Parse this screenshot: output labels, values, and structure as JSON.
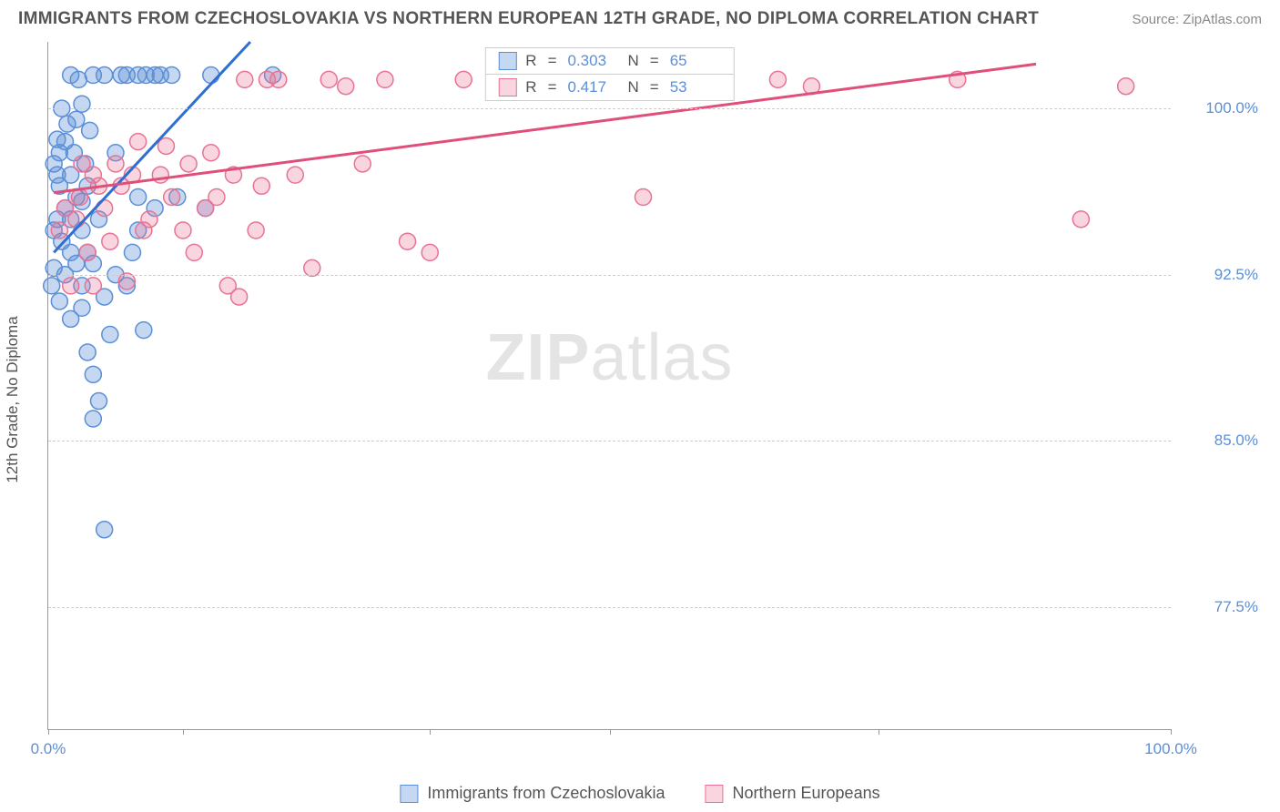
{
  "header": {
    "title": "IMMIGRANTS FROM CZECHOSLOVAKIA VS NORTHERN EUROPEAN 12TH GRADE, NO DIPLOMA CORRELATION CHART",
    "source": "Source: ZipAtlas.com"
  },
  "watermark": {
    "bold": "ZIP",
    "light": "atlas"
  },
  "chart": {
    "type": "scatter",
    "background_color": "#ffffff",
    "grid_color": "#cccccc",
    "axis_color": "#999999",
    "ylabel": "12th Grade, No Diploma",
    "ylabel_fontsize": 17,
    "ylabel_color": "#555555",
    "tick_fontsize": 17,
    "tick_color": "#5b8fd6",
    "xlim": [
      0,
      100
    ],
    "ylim": [
      72,
      103
    ],
    "xtick_positions": [
      0,
      12,
      34,
      50,
      74,
      100
    ],
    "xtick_labels": {
      "0": "0.0%",
      "100": "100.0%"
    },
    "ytick_positions": [
      77.5,
      85.0,
      92.5,
      100.0
    ],
    "ytick_labels": [
      "77.5%",
      "85.0%",
      "92.5%",
      "100.0%"
    ],
    "series": [
      {
        "name": "Immigrants from Czechoslovakia",
        "marker_color_fill": "rgba(91,143,214,0.35)",
        "marker_color_stroke": "#5b8fd6",
        "marker_radius": 9,
        "line_color": "#2f6fd1",
        "line_width": 3,
        "trend": {
          "x1": 0.5,
          "y1": 93.5,
          "x2": 18,
          "y2": 103
        },
        "R_label": "R",
        "R_value": "0.303",
        "N_label": "N",
        "N_value": "65",
        "points": [
          [
            0.3,
            92.0
          ],
          [
            0.5,
            92.8
          ],
          [
            0.5,
            94.5
          ],
          [
            0.5,
            97.5
          ],
          [
            0.8,
            95.0
          ],
          [
            0.8,
            97.0
          ],
          [
            0.8,
            98.6
          ],
          [
            1.0,
            91.3
          ],
          [
            1.0,
            96.5
          ],
          [
            1.0,
            98.0
          ],
          [
            1.2,
            100.0
          ],
          [
            1.2,
            94.0
          ],
          [
            1.5,
            92.5
          ],
          [
            1.5,
            95.5
          ],
          [
            1.5,
            98.5
          ],
          [
            1.7,
            99.3
          ],
          [
            2.0,
            90.5
          ],
          [
            2.0,
            93.5
          ],
          [
            2.0,
            95.0
          ],
          [
            2.0,
            97.0
          ],
          [
            2.0,
            101.5
          ],
          [
            2.3,
            98.0
          ],
          [
            2.5,
            93.0
          ],
          [
            2.5,
            96.0
          ],
          [
            2.5,
            99.5
          ],
          [
            2.7,
            101.3
          ],
          [
            3.0,
            91.0
          ],
          [
            3.0,
            92.0
          ],
          [
            3.0,
            94.5
          ],
          [
            3.0,
            95.8
          ],
          [
            3.0,
            100.2
          ],
          [
            3.3,
            97.5
          ],
          [
            3.5,
            89.0
          ],
          [
            3.5,
            93.5
          ],
          [
            3.5,
            96.5
          ],
          [
            3.7,
            99.0
          ],
          [
            4.0,
            86.0
          ],
          [
            4.0,
            88.0
          ],
          [
            4.0,
            93.0
          ],
          [
            4.0,
            101.5
          ],
          [
            4.5,
            86.8
          ],
          [
            4.5,
            95.0
          ],
          [
            5.0,
            81.0
          ],
          [
            5.0,
            91.5
          ],
          [
            5.0,
            101.5
          ],
          [
            5.5,
            89.8
          ],
          [
            6.0,
            92.5
          ],
          [
            6.0,
            98.0
          ],
          [
            6.5,
            101.5
          ],
          [
            7.0,
            92.0
          ],
          [
            7.0,
            101.5
          ],
          [
            7.5,
            93.5
          ],
          [
            8.0,
            94.5
          ],
          [
            8.0,
            96.0
          ],
          [
            8.0,
            101.5
          ],
          [
            8.5,
            90.0
          ],
          [
            8.7,
            101.5
          ],
          [
            9.5,
            95.5
          ],
          [
            9.5,
            101.5
          ],
          [
            10.0,
            101.5
          ],
          [
            11.0,
            101.5
          ],
          [
            11.5,
            96.0
          ],
          [
            14.0,
            95.5
          ],
          [
            14.5,
            101.5
          ],
          [
            20.0,
            101.5
          ]
        ]
      },
      {
        "name": "Northern Europeans",
        "marker_color_fill": "rgba(232,115,148,0.30)",
        "marker_color_stroke": "#e87394",
        "marker_radius": 9,
        "line_color": "#e04e7a",
        "line_width": 3,
        "trend": {
          "x1": 0.5,
          "y1": 96.2,
          "x2": 88,
          "y2": 102
        },
        "R_label": "R",
        "R_value": "0.417",
        "N_label": "N",
        "N_value": "53",
        "points": [
          [
            1.0,
            94.5
          ],
          [
            1.5,
            95.5
          ],
          [
            2.0,
            92.0
          ],
          [
            2.5,
            95.0
          ],
          [
            2.8,
            96.0
          ],
          [
            3.0,
            97.5
          ],
          [
            3.5,
            93.5
          ],
          [
            4.0,
            97.0
          ],
          [
            4.0,
            92.0
          ],
          [
            4.5,
            96.5
          ],
          [
            5.0,
            95.5
          ],
          [
            5.5,
            94.0
          ],
          [
            6.0,
            97.5
          ],
          [
            6.5,
            96.5
          ],
          [
            7.0,
            92.2
          ],
          [
            7.5,
            97.0
          ],
          [
            8.0,
            98.5
          ],
          [
            8.5,
            94.5
          ],
          [
            9.0,
            95.0
          ],
          [
            10.0,
            97.0
          ],
          [
            10.5,
            98.3
          ],
          [
            11.0,
            96.0
          ],
          [
            12.0,
            94.5
          ],
          [
            12.5,
            97.5
          ],
          [
            13.0,
            93.5
          ],
          [
            14.0,
            95.5
          ],
          [
            14.5,
            98.0
          ],
          [
            15.0,
            96.0
          ],
          [
            16.0,
            92.0
          ],
          [
            16.5,
            97.0
          ],
          [
            17.0,
            91.5
          ],
          [
            17.5,
            101.3
          ],
          [
            18.5,
            94.5
          ],
          [
            19.0,
            96.5
          ],
          [
            19.5,
            101.3
          ],
          [
            20.5,
            101.3
          ],
          [
            22.0,
            97.0
          ],
          [
            23.5,
            92.8
          ],
          [
            25.0,
            101.3
          ],
          [
            26.5,
            101.0
          ],
          [
            28.0,
            97.5
          ],
          [
            30.0,
            101.3
          ],
          [
            32.0,
            94.0
          ],
          [
            34.0,
            93.5
          ],
          [
            37.0,
            101.3
          ],
          [
            48.0,
            101.0
          ],
          [
            53.0,
            96.0
          ],
          [
            60.0,
            101.3
          ],
          [
            65.0,
            101.3
          ],
          [
            68.0,
            101.0
          ],
          [
            81.0,
            101.3
          ],
          [
            92.0,
            95.0
          ],
          [
            96.0,
            101.0
          ]
        ]
      }
    ],
    "legend_bottom": [
      {
        "swatch_fill": "rgba(91,143,214,0.35)",
        "swatch_stroke": "#5b8fd6",
        "label": "Immigrants from Czechoslovakia"
      },
      {
        "swatch_fill": "rgba(232,115,148,0.30)",
        "swatch_stroke": "#e87394",
        "label": "Northern Europeans"
      }
    ]
  }
}
